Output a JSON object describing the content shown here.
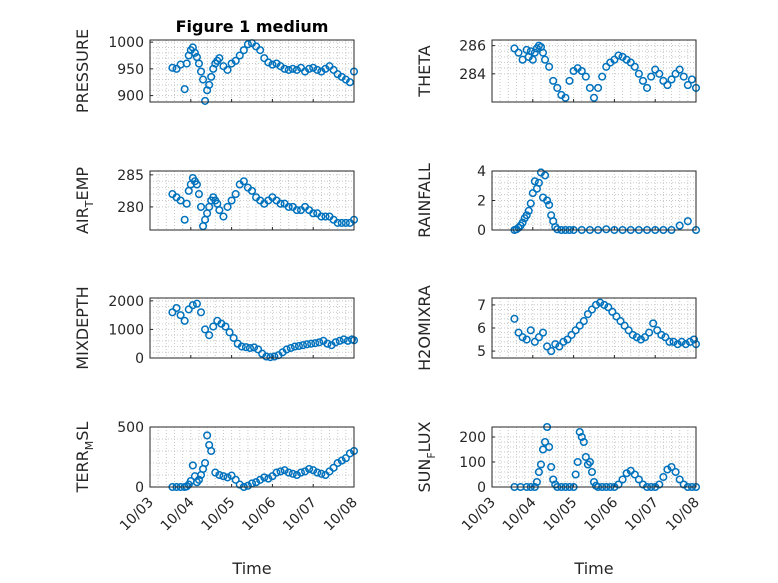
{
  "figure_title": "Figure 1 medium",
  "marker_color": "#0072bd",
  "chart_data": [
    {
      "type": "scatter",
      "ylabel": "PRESSURE",
      "ylim": [
        888,
        1004
      ],
      "yticks": [
        900,
        950,
        1000
      ],
      "x": [
        0.55,
        0.65,
        0.75,
        0.85,
        0.9,
        0.95,
        1.0,
        1.05,
        1.1,
        1.15,
        1.2,
        1.25,
        1.3,
        1.35,
        1.4,
        1.45,
        1.5,
        1.55,
        1.6,
        1.65,
        1.7,
        1.8,
        1.9,
        2.0,
        2.1,
        2.2,
        2.3,
        2.4,
        2.5,
        2.6,
        2.7,
        2.8,
        2.9,
        3.0,
        3.1,
        3.2,
        3.3,
        3.4,
        3.5,
        3.6,
        3.7,
        3.8,
        3.9,
        4.0,
        4.1,
        4.2,
        4.3,
        4.4,
        4.5,
        4.6,
        4.7,
        4.8,
        4.9,
        5.0
      ],
      "y": [
        952,
        950,
        958,
        912,
        960,
        975,
        985,
        990,
        980,
        972,
        960,
        945,
        930,
        890,
        910,
        920,
        935,
        950,
        960,
        965,
        970,
        955,
        948,
        960,
        965,
        975,
        985,
        996,
        998,
        992,
        985,
        970,
        962,
        958,
        960,
        955,
        950,
        948,
        950,
        948,
        952,
        945,
        950,
        952,
        948,
        945,
        950,
        955,
        948,
        940,
        935,
        930,
        925,
        945
      ]
    },
    {
      "type": "scatter",
      "ylabel": "THETA",
      "ylim": [
        282.0,
        286.4
      ],
      "yticks": [
        284,
        286
      ],
      "x": [
        0.55,
        0.65,
        0.75,
        0.85,
        0.9,
        0.95,
        1.0,
        1.05,
        1.1,
        1.15,
        1.2,
        1.25,
        1.3,
        1.4,
        1.5,
        1.6,
        1.7,
        1.8,
        1.9,
        2.0,
        2.1,
        2.2,
        2.3,
        2.4,
        2.5,
        2.6,
        2.7,
        2.8,
        2.9,
        3.0,
        3.1,
        3.2,
        3.3,
        3.4,
        3.5,
        3.6,
        3.7,
        3.8,
        3.9,
        4.0,
        4.1,
        4.2,
        4.3,
        4.4,
        4.5,
        4.6,
        4.7,
        4.8,
        4.9,
        5.0
      ],
      "y": [
        285.8,
        285.5,
        285.0,
        285.7,
        285.2,
        285.6,
        285.0,
        285.5,
        285.8,
        286.0,
        285.9,
        285.5,
        285.0,
        284.5,
        283.5,
        283.0,
        282.5,
        282.3,
        283.5,
        284.2,
        284.4,
        284.2,
        283.8,
        283.0,
        282.3,
        283.0,
        283.8,
        284.5,
        284.8,
        285.0,
        285.3,
        285.2,
        285.0,
        284.8,
        284.5,
        284.0,
        283.5,
        283.0,
        283.8,
        284.3,
        284.0,
        283.5,
        283.2,
        283.6,
        284.0,
        284.3,
        283.8,
        283.2,
        283.6,
        283.0
      ]
    },
    {
      "type": "scatter",
      "ylabel": "AIR_TEMP",
      "ylim": [
        276.4,
        285.6
      ],
      "yticks": [
        280,
        285
      ],
      "x": [
        0.55,
        0.65,
        0.75,
        0.85,
        0.9,
        0.95,
        1.0,
        1.05,
        1.1,
        1.15,
        1.2,
        1.25,
        1.3,
        1.35,
        1.4,
        1.45,
        1.5,
        1.55,
        1.6,
        1.65,
        1.7,
        1.8,
        1.9,
        2.0,
        2.1,
        2.2,
        2.3,
        2.4,
        2.5,
        2.6,
        2.7,
        2.8,
        2.9,
        3.0,
        3.1,
        3.2,
        3.3,
        3.4,
        3.5,
        3.6,
        3.7,
        3.8,
        3.9,
        4.0,
        4.1,
        4.2,
        4.3,
        4.4,
        4.5,
        4.6,
        4.7,
        4.8,
        4.9,
        5.0
      ],
      "y": [
        282.0,
        281.5,
        281.0,
        278.0,
        280.5,
        282.5,
        283.5,
        284.5,
        284.0,
        283.5,
        282.0,
        280.0,
        277.0,
        278.0,
        279.0,
        280.0,
        281.0,
        281.5,
        281.0,
        280.5,
        279.5,
        278.5,
        280.0,
        281.0,
        282.0,
        283.5,
        284.0,
        283.0,
        282.5,
        281.5,
        281.0,
        280.5,
        281.0,
        281.5,
        281.0,
        280.5,
        280.5,
        280.0,
        280.0,
        279.5,
        279.5,
        280.0,
        279.5,
        279.0,
        279.0,
        278.5,
        278.5,
        278.5,
        278.0,
        277.5,
        277.5,
        277.5,
        277.5,
        278.0
      ]
    },
    {
      "type": "scatter",
      "ylabel": "RAINFALL",
      "ylim": [
        0,
        4
      ],
      "yticks": [
        0,
        2,
        4
      ],
      "x": [
        0.55,
        0.6,
        0.65,
        0.7,
        0.75,
        0.8,
        0.85,
        0.9,
        0.95,
        1.0,
        1.05,
        1.1,
        1.15,
        1.2,
        1.25,
        1.3,
        1.35,
        1.4,
        1.45,
        1.5,
        1.55,
        1.6,
        1.7,
        1.8,
        1.9,
        2.0,
        2.2,
        2.4,
        2.6,
        2.8,
        3.0,
        3.2,
        3.4,
        3.6,
        3.8,
        4.0,
        4.2,
        4.4,
        4.6,
        4.8,
        5.0
      ],
      "y": [
        0,
        0.05,
        0.15,
        0.3,
        0.5,
        0.8,
        1.0,
        1.3,
        1.8,
        2.5,
        3.3,
        2.8,
        3.2,
        3.9,
        2.2,
        3.7,
        2.0,
        1.7,
        1.0,
        0.6,
        0.2,
        0.05,
        0,
        0,
        0,
        0,
        0,
        0,
        0,
        0.05,
        0,
        0,
        0,
        0,
        0,
        0,
        0,
        0,
        0.3,
        0.6,
        0
      ]
    },
    {
      "type": "scatter",
      "ylabel": "MIXDEPTH",
      "ylim": [
        0,
        2100
      ],
      "yticks": [
        0,
        1000,
        2000
      ],
      "x": [
        0.55,
        0.65,
        0.75,
        0.85,
        0.95,
        1.05,
        1.15,
        1.25,
        1.35,
        1.45,
        1.55,
        1.65,
        1.75,
        1.85,
        1.95,
        2.05,
        2.15,
        2.25,
        2.35,
        2.45,
        2.55,
        2.65,
        2.75,
        2.85,
        2.95,
        3.05,
        3.15,
        3.25,
        3.35,
        3.45,
        3.55,
        3.65,
        3.75,
        3.85,
        3.95,
        4.05,
        4.15,
        4.25,
        4.35,
        4.45,
        4.55,
        4.65,
        4.75,
        4.85,
        4.95,
        5.0
      ],
      "y": [
        1600,
        1750,
        1500,
        1300,
        1700,
        1850,
        1900,
        1600,
        1000,
        800,
        1100,
        1300,
        1200,
        1100,
        900,
        700,
        500,
        400,
        380,
        350,
        370,
        300,
        150,
        50,
        30,
        50,
        100,
        200,
        300,
        350,
        400,
        420,
        450,
        480,
        500,
        520,
        550,
        600,
        500,
        450,
        550,
        600,
        650,
        600,
        650,
        620
      ]
    },
    {
      "type": "scatter",
      "ylabel": "H2OMIXRA",
      "ylim": [
        4.7,
        7.3
      ],
      "yticks": [
        5,
        6,
        7
      ],
      "x": [
        0.55,
        0.65,
        0.75,
        0.85,
        0.95,
        1.05,
        1.15,
        1.25,
        1.35,
        1.45,
        1.55,
        1.65,
        1.75,
        1.85,
        1.95,
        2.05,
        2.15,
        2.25,
        2.35,
        2.45,
        2.55,
        2.65,
        2.75,
        2.85,
        2.95,
        3.05,
        3.15,
        3.25,
        3.35,
        3.45,
        3.55,
        3.65,
        3.75,
        3.85,
        3.95,
        4.05,
        4.15,
        4.25,
        4.35,
        4.45,
        4.55,
        4.65,
        4.75,
        4.85,
        4.95,
        5.0
      ],
      "y": [
        6.4,
        5.8,
        5.6,
        5.5,
        5.9,
        5.4,
        5.6,
        5.8,
        5.2,
        5.0,
        5.3,
        5.2,
        5.4,
        5.5,
        5.7,
        5.9,
        6.1,
        6.3,
        6.6,
        6.8,
        7.0,
        7.1,
        7.0,
        6.9,
        6.7,
        6.5,
        6.3,
        6.1,
        5.9,
        5.7,
        5.6,
        5.5,
        5.6,
        5.8,
        6.2,
        5.9,
        5.7,
        5.6,
        5.4,
        5.4,
        5.3,
        5.4,
        5.3,
        5.4,
        5.5,
        5.3
      ]
    },
    {
      "type": "scatter",
      "ylabel": "TERR_MSL",
      "ylim": [
        0,
        500
      ],
      "yticks": [
        0,
        500
      ],
      "x": [
        0.55,
        0.65,
        0.75,
        0.85,
        0.9,
        0.95,
        1.0,
        1.05,
        1.1,
        1.15,
        1.2,
        1.25,
        1.3,
        1.35,
        1.4,
        1.45,
        1.5,
        1.6,
        1.7,
        1.8,
        1.9,
        2.0,
        2.1,
        2.2,
        2.3,
        2.4,
        2.5,
        2.6,
        2.7,
        2.8,
        2.9,
        3.0,
        3.1,
        3.2,
        3.3,
        3.4,
        3.5,
        3.6,
        3.7,
        3.8,
        3.9,
        4.0,
        4.1,
        4.2,
        4.3,
        4.4,
        4.5,
        4.6,
        4.7,
        4.8,
        4.9,
        5.0
      ],
      "y": [
        0,
        0,
        0,
        0,
        5,
        20,
        50,
        180,
        90,
        40,
        60,
        100,
        150,
        200,
        430,
        350,
        300,
        120,
        100,
        90,
        80,
        95,
        60,
        20,
        0,
        10,
        30,
        40,
        60,
        80,
        70,
        90,
        120,
        130,
        140,
        120,
        110,
        100,
        120,
        130,
        150,
        140,
        120,
        110,
        100,
        130,
        160,
        200,
        220,
        240,
        280,
        300
      ]
    },
    {
      "type": "scatter",
      "ylabel": "SUN_FLUX",
      "ylim": [
        0,
        240
      ],
      "yticks": [
        0,
        100,
        200
      ],
      "x": [
        0.55,
        0.7,
        0.85,
        0.95,
        1.05,
        1.1,
        1.15,
        1.2,
        1.25,
        1.3,
        1.35,
        1.4,
        1.45,
        1.5,
        1.55,
        1.6,
        1.7,
        1.8,
        1.9,
        2.0,
        2.05,
        2.1,
        2.15,
        2.2,
        2.25,
        2.3,
        2.35,
        2.4,
        2.45,
        2.5,
        2.55,
        2.6,
        2.7,
        2.8,
        2.9,
        3.0,
        3.1,
        3.2,
        3.3,
        3.4,
        3.5,
        3.6,
        3.7,
        3.8,
        3.9,
        4.0,
        4.1,
        4.2,
        4.3,
        4.4,
        4.5,
        4.6,
        4.7,
        4.8,
        4.9,
        5.0
      ],
      "y": [
        0,
        0,
        0,
        0,
        0,
        20,
        60,
        90,
        150,
        180,
        240,
        160,
        80,
        30,
        10,
        0,
        0,
        0,
        0,
        0,
        50,
        100,
        220,
        200,
        180,
        120,
        90,
        100,
        60,
        20,
        5,
        0,
        0,
        0,
        0,
        0,
        10,
        30,
        55,
        65,
        50,
        30,
        10,
        0,
        0,
        0,
        10,
        40,
        70,
        80,
        60,
        30,
        10,
        0,
        0,
        0
      ]
    }
  ],
  "x_axis": {
    "xlim": [
      0,
      5
    ],
    "tick_labels": [
      "10/03",
      "10/04",
      "10/05",
      "10/06",
      "10/07",
      "10/08"
    ],
    "label": "Time"
  }
}
